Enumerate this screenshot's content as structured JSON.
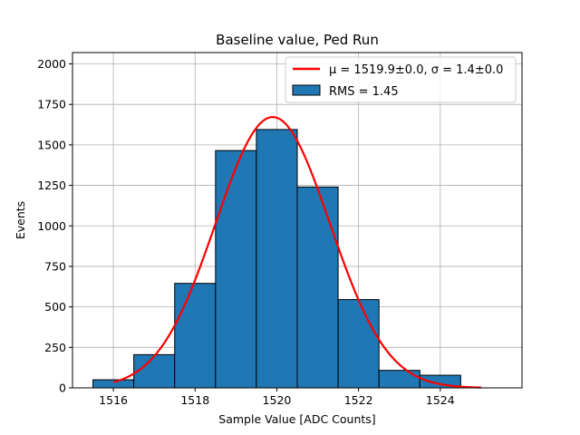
{
  "chart_data": {
    "type": "bar",
    "title": "Baseline value, Ped Run",
    "xlabel": "Sample Value [ADC Counts]",
    "ylabel": "Events",
    "xlim": [
      1515.0,
      1526.0
    ],
    "ylim": [
      0,
      2070
    ],
    "xticks": [
      1516,
      1518,
      1520,
      1522,
      1524
    ],
    "yticks": [
      0,
      250,
      500,
      750,
      1000,
      1250,
      1500,
      1750,
      2000
    ],
    "grid": true,
    "legend_position": "top-right",
    "histogram": {
      "name": "RMS = 1.45",
      "color": "#1f77b4",
      "edgecolor": "#000000",
      "bin_edges": [
        1515.5,
        1516.5,
        1517.5,
        1518.5,
        1519.5,
        1520.5,
        1521.5,
        1522.5,
        1523.5,
        1524.5
      ],
      "values": [
        50,
        205,
        645,
        1465,
        1595,
        1240,
        545,
        108,
        78
      ]
    },
    "fit": {
      "name": "μ = 1519.9±0.0, σ = 1.4±0.0",
      "color": "#ff0000",
      "type": "gaussian",
      "amplitude": 1672,
      "mean": 1519.9,
      "sigma": 1.4,
      "x_range": [
        1516.0,
        1525.0
      ]
    }
  }
}
